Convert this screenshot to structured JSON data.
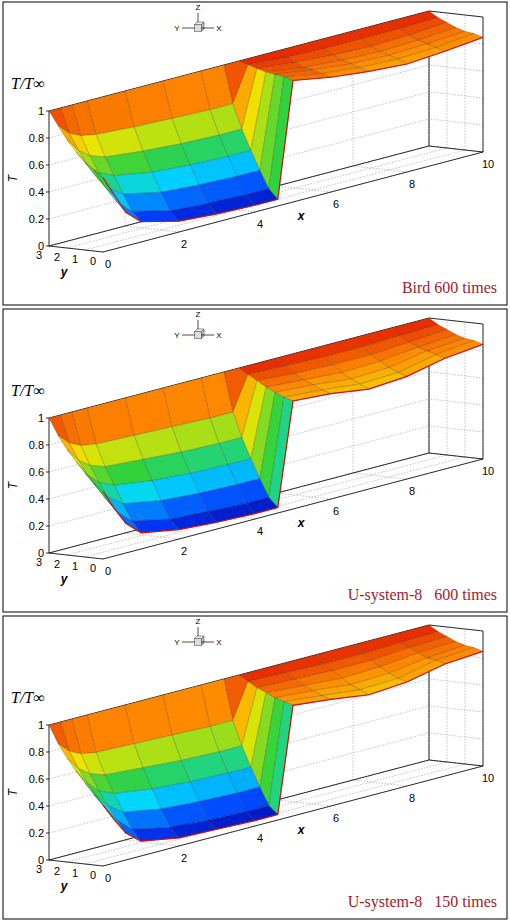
{
  "chart_data": [
    {
      "type": "surface",
      "title": "Bird 600 times",
      "z_title": "T/T∞",
      "x_label": "x",
      "y_label": "y",
      "z_label": "T",
      "triad_labels": [
        "X",
        "Y",
        "Z"
      ],
      "grid": true,
      "x": [
        0,
        0.3,
        0.6,
        1,
        2,
        3,
        4,
        4.6,
        5,
        6,
        7,
        8,
        9,
        10
      ],
      "y": [
        0,
        0.5,
        1,
        1.5,
        2,
        2.5,
        3
      ],
      "values": [
        [
          0.55,
          0.4,
          0.25,
          0.15,
          0.08,
          0.06,
          0.05,
          0.05,
          0.9,
          0.85,
          0.82,
          0.8,
          0.82,
          0.85
        ],
        [
          0.6,
          0.45,
          0.32,
          0.22,
          0.15,
          0.13,
          0.12,
          0.12,
          0.92,
          0.87,
          0.84,
          0.83,
          0.84,
          0.87
        ],
        [
          0.65,
          0.52,
          0.42,
          0.34,
          0.28,
          0.26,
          0.25,
          0.25,
          0.93,
          0.89,
          0.86,
          0.85,
          0.86,
          0.88
        ],
        [
          0.72,
          0.6,
          0.52,
          0.47,
          0.42,
          0.4,
          0.39,
          0.39,
          0.94,
          0.9,
          0.88,
          0.87,
          0.88,
          0.9
        ],
        [
          0.8,
          0.7,
          0.64,
          0.6,
          0.57,
          0.55,
          0.54,
          0.54,
          0.96,
          0.93,
          0.91,
          0.9,
          0.91,
          0.93
        ],
        [
          0.9,
          0.82,
          0.78,
          0.76,
          0.74,
          0.73,
          0.72,
          0.72,
          0.98,
          0.96,
          0.95,
          0.95,
          0.95,
          0.96
        ],
        [
          1,
          1,
          1,
          1,
          1,
          1,
          1,
          1,
          1,
          1,
          1,
          1,
          1,
          1
        ]
      ],
      "xlim": [
        0,
        10
      ],
      "ylim": [
        0,
        3
      ],
      "zlim": [
        0,
        1
      ],
      "xticks": [
        0,
        2,
        4,
        6,
        8,
        10
      ],
      "yticks": [
        0,
        1,
        2,
        3
      ],
      "zticks": [
        0,
        0.2,
        0.4,
        0.6,
        0.8,
        1
      ]
    },
    {
      "type": "surface",
      "title": "U-system-8   600 times",
      "z_title": "T/T∞",
      "x_label": "x",
      "y_label": "y",
      "z_label": "T",
      "triad_labels": [
        "X",
        "Y",
        "Z"
      ],
      "grid": true,
      "x": [
        0,
        0.3,
        0.6,
        1,
        2,
        3,
        4,
        4.6,
        5,
        6,
        7,
        8,
        9,
        10
      ],
      "y": [
        0,
        0.5,
        1,
        1.5,
        2,
        2.5,
        3
      ],
      "values": [
        [
          0.5,
          0.35,
          0.22,
          0.12,
          0.07,
          0.05,
          0.04,
          0.04,
          0.8,
          0.78,
          0.74,
          0.76,
          0.82,
          0.85
        ],
        [
          0.55,
          0.42,
          0.3,
          0.2,
          0.14,
          0.12,
          0.11,
          0.11,
          0.82,
          0.8,
          0.77,
          0.78,
          0.84,
          0.87
        ],
        [
          0.62,
          0.5,
          0.4,
          0.32,
          0.27,
          0.25,
          0.24,
          0.24,
          0.85,
          0.83,
          0.8,
          0.81,
          0.86,
          0.88
        ],
        [
          0.7,
          0.58,
          0.5,
          0.45,
          0.41,
          0.39,
          0.38,
          0.38,
          0.88,
          0.86,
          0.84,
          0.85,
          0.88,
          0.9
        ],
        [
          0.78,
          0.68,
          0.62,
          0.58,
          0.56,
          0.54,
          0.53,
          0.53,
          0.92,
          0.9,
          0.89,
          0.89,
          0.91,
          0.93
        ],
        [
          0.88,
          0.8,
          0.76,
          0.74,
          0.73,
          0.72,
          0.71,
          0.71,
          0.96,
          0.95,
          0.94,
          0.94,
          0.95,
          0.96
        ],
        [
          1,
          1,
          1,
          1,
          1,
          1,
          1,
          1,
          1,
          1,
          1,
          1,
          1,
          1
        ]
      ],
      "xlim": [
        0,
        10
      ],
      "ylim": [
        0,
        3
      ],
      "zlim": [
        0,
        1
      ],
      "xticks": [
        0,
        2,
        4,
        6,
        8,
        10
      ],
      "yticks": [
        0,
        1,
        2,
        3
      ],
      "zticks": [
        0,
        0.2,
        0.4,
        0.6,
        0.8,
        1
      ]
    },
    {
      "type": "surface",
      "title": "U-system-8   150 times",
      "z_title": "T/T∞",
      "x_label": "x",
      "y_label": "y",
      "z_label": "T",
      "triad_labels": [
        "X",
        "Y",
        "Z"
      ],
      "grid": true,
      "x": [
        0,
        0.3,
        0.6,
        1,
        2,
        3,
        4,
        4.6,
        5,
        6,
        7,
        8,
        9,
        10
      ],
      "y": [
        0,
        0.5,
        1,
        1.5,
        2,
        2.5,
        3
      ],
      "values": [
        [
          0.45,
          0.32,
          0.2,
          0.11,
          0.06,
          0.05,
          0.04,
          0.04,
          0.82,
          0.79,
          0.75,
          0.77,
          0.83,
          0.85
        ],
        [
          0.52,
          0.4,
          0.29,
          0.19,
          0.13,
          0.11,
          0.1,
          0.1,
          0.84,
          0.81,
          0.78,
          0.79,
          0.85,
          0.87
        ],
        [
          0.6,
          0.48,
          0.39,
          0.31,
          0.26,
          0.24,
          0.23,
          0.23,
          0.86,
          0.84,
          0.81,
          0.82,
          0.86,
          0.88
        ],
        [
          0.68,
          0.57,
          0.49,
          0.44,
          0.4,
          0.38,
          0.37,
          0.37,
          0.89,
          0.87,
          0.85,
          0.86,
          0.89,
          0.9
        ],
        [
          0.77,
          0.67,
          0.61,
          0.57,
          0.55,
          0.53,
          0.52,
          0.52,
          0.92,
          0.91,
          0.9,
          0.9,
          0.92,
          0.93
        ],
        [
          0.87,
          0.79,
          0.75,
          0.73,
          0.72,
          0.71,
          0.7,
          0.7,
          0.96,
          0.95,
          0.94,
          0.94,
          0.95,
          0.96
        ],
        [
          1,
          1,
          1,
          1,
          1,
          1,
          1,
          1,
          1,
          1,
          1,
          1,
          1,
          1
        ]
      ],
      "xlim": [
        0,
        10
      ],
      "ylim": [
        0,
        3
      ],
      "zlim": [
        0,
        1
      ],
      "xticks": [
        0,
        2,
        4,
        6,
        8,
        10
      ],
      "yticks": [
        0,
        1,
        2,
        3
      ],
      "zticks": [
        0,
        0.2,
        0.4,
        0.6,
        0.8,
        1
      ]
    }
  ]
}
